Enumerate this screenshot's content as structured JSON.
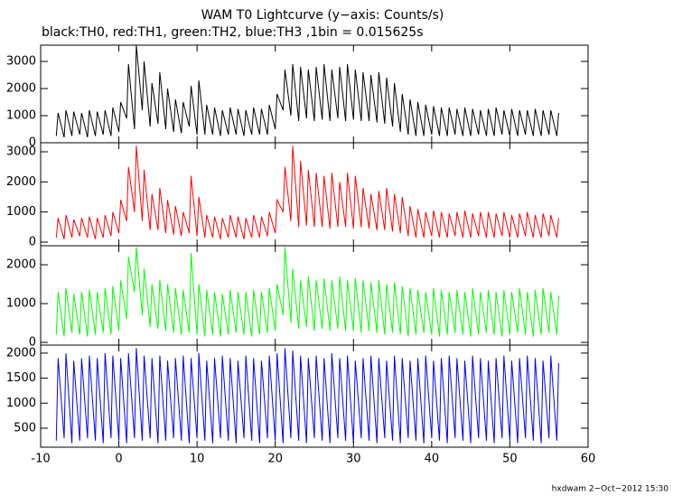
{
  "chart_data": {
    "type": "range",
    "title": "WAM T0 Lightcurve (y−axis: Counts/s)",
    "subtitle": "black:TH0, red:TH1, green:TH2, blue:TH3 ,1bin = 0.015625s",
    "footer": "hxdwam  2−Oct−2012 15:30",
    "xlim": [
      -10,
      60
    ],
    "xticks": [
      -10,
      0,
      10,
      20,
      30,
      40,
      50,
      60
    ],
    "x": [
      -8,
      -7,
      -6,
      -5,
      -4,
      -3,
      -2,
      -1,
      0,
      1,
      2,
      3,
      4,
      5,
      6,
      7,
      8,
      9,
      10,
      11,
      12,
      13,
      14,
      15,
      16,
      17,
      18,
      19,
      20,
      21,
      22,
      23,
      24,
      25,
      26,
      27,
      28,
      29,
      30,
      31,
      32,
      33,
      34,
      35,
      36,
      37,
      38,
      39,
      40,
      41,
      42,
      43,
      44,
      45,
      46,
      47,
      48,
      49,
      50,
      51,
      52,
      53,
      54,
      55,
      56
    ],
    "panels": [
      {
        "color": "#000000",
        "ylim": [
          0,
          3600
        ],
        "yticks": [
          0,
          1000,
          2000,
          3000
        ],
        "high": [
          1100,
          1200,
          1150,
          1100,
          1200,
          1150,
          1200,
          1300,
          1500,
          2900,
          3600,
          3000,
          2200,
          2600,
          2000,
          1600,
          1500,
          2100,
          2300,
          1400,
          1300,
          1200,
          1300,
          1250,
          1200,
          1300,
          1250,
          1400,
          1800,
          2700,
          2900,
          2800,
          2700,
          2800,
          2900,
          2700,
          2800,
          2900,
          2700,
          2600,
          2500,
          2600,
          2400,
          2200,
          1800,
          1600,
          1500,
          1400,
          1350,
          1300,
          1300,
          1250,
          1300,
          1250,
          1200,
          1250,
          1300,
          1200,
          1250,
          1200,
          1200,
          1250,
          1200,
          1200,
          1100
        ],
        "low": [
          250,
          200,
          250,
          300,
          200,
          250,
          300,
          250,
          400,
          900,
          500,
          1200,
          600,
          700,
          500,
          400,
          350,
          600,
          300,
          300,
          300,
          250,
          300,
          300,
          250,
          300,
          300,
          300,
          500,
          1200,
          1000,
          800,
          900,
          800,
          850,
          800,
          900,
          800,
          850,
          800,
          800,
          750,
          700,
          600,
          400,
          300,
          250,
          250,
          300,
          250,
          250,
          300,
          250,
          250,
          300,
          250,
          250,
          300,
          250,
          250,
          300,
          250,
          250,
          300,
          250
        ]
      },
      {
        "color": "#ff0000",
        "ylim": [
          -120,
          3300
        ],
        "yticks": [
          0,
          1000,
          2000,
          3000
        ],
        "high": [
          800,
          900,
          750,
          800,
          850,
          800,
          900,
          1000,
          1400,
          2500,
          3200,
          2400,
          1600,
          1800,
          1400,
          1200,
          1000,
          2200,
          1500,
          900,
          850,
          800,
          900,
          850,
          800,
          900,
          850,
          1000,
          1400,
          2500,
          3200,
          2700,
          2400,
          2300,
          2200,
          2300,
          2000,
          2300,
          2200,
          1800,
          1600,
          1700,
          1800,
          1600,
          1500,
          1200,
          1100,
          1000,
          1050,
          1000,
          950,
          1000,
          1050,
          950,
          1000,
          1000,
          950,
          1000,
          900,
          950,
          1000,
          900,
          950,
          900,
          800
        ],
        "low": [
          150,
          100,
          150,
          200,
          150,
          100,
          150,
          200,
          300,
          700,
          1000,
          700,
          400,
          400,
          300,
          250,
          200,
          300,
          200,
          150,
          150,
          100,
          150,
          150,
          100,
          150,
          150,
          200,
          300,
          1000,
          700,
          500,
          550,
          500,
          500,
          450,
          500,
          500,
          450,
          500,
          450,
          400,
          400,
          350,
          300,
          200,
          150,
          150,
          200,
          150,
          150,
          200,
          150,
          150,
          200,
          150,
          150,
          200,
          150,
          150,
          200,
          150,
          150,
          200,
          150
        ]
      },
      {
        "color": "#00ff00",
        "ylim": [
          -70,
          2490
        ],
        "yticks": [
          0,
          1000,
          2000
        ],
        "high": [
          1300,
          1400,
          1250,
          1300,
          1350,
          1300,
          1400,
          1450,
          1600,
          2200,
          2450,
          1900,
          1500,
          1600,
          1500,
          1400,
          1350,
          2300,
          1500,
          1350,
          1300,
          1250,
          1350,
          1300,
          1300,
          1350,
          1300,
          1400,
          1500,
          2450,
          1900,
          1600,
          1700,
          1600,
          1650,
          1600,
          1700,
          1600,
          1650,
          1600,
          1550,
          1600,
          1500,
          1550,
          1450,
          1400,
          1350,
          1300,
          1400,
          1350,
          1300,
          1350,
          1300,
          1400,
          1300,
          1350,
          1300,
          1350,
          1300,
          1400,
          1300,
          1350,
          1400,
          1300,
          1200
        ],
        "low": [
          200,
          150,
          250,
          200,
          150,
          200,
          250,
          200,
          300,
          600,
          1300,
          700,
          400,
          350,
          300,
          250,
          200,
          250,
          200,
          150,
          200,
          150,
          200,
          250,
          200,
          150,
          200,
          250,
          300,
          700,
          500,
          350,
          400,
          300,
          350,
          300,
          350,
          300,
          300,
          250,
          300,
          250,
          200,
          250,
          200,
          150,
          200,
          250,
          200,
          150,
          200,
          250,
          200,
          150,
          200,
          250,
          200,
          150,
          200,
          250,
          200,
          150,
          200,
          250,
          200
        ]
      },
      {
        "color": "#0000ff",
        "ylim": [
          120,
          2160
        ],
        "yticks": [
          500,
          1000,
          1500,
          2000
        ],
        "high": [
          1900,
          2000,
          1850,
          1900,
          1950,
          1900,
          2000,
          1950,
          1900,
          2000,
          2100,
          1950,
          1900,
          1950,
          1850,
          1900,
          1950,
          1900,
          2000,
          1850,
          1900,
          1950,
          1900,
          1850,
          1950,
          1900,
          1850,
          1950,
          2000,
          2100,
          2050,
          1950,
          1900,
          1950,
          1900,
          2000,
          1900,
          1950,
          1850,
          1900,
          1950,
          1900,
          1850,
          1950,
          1900,
          1850,
          1900,
          1950,
          1850,
          1900,
          1950,
          1900,
          1850,
          1950,
          1900,
          1850,
          1900,
          1950,
          1850,
          1900,
          1950,
          1900,
          1850,
          1950,
          1800
        ],
        "low": [
          250,
          300,
          200,
          250,
          300,
          250,
          200,
          300,
          250,
          200,
          300,
          250,
          300,
          200,
          250,
          300,
          250,
          200,
          300,
          250,
          200,
          300,
          250,
          200,
          300,
          250,
          200,
          300,
          250,
          200,
          300,
          250,
          200,
          300,
          250,
          200,
          300,
          250,
          200,
          300,
          250,
          200,
          300,
          250,
          200,
          300,
          250,
          200,
          300,
          250,
          200,
          300,
          250,
          200,
          300,
          250,
          200,
          300,
          250,
          200,
          300,
          250,
          200,
          300,
          250
        ]
      }
    ]
  }
}
